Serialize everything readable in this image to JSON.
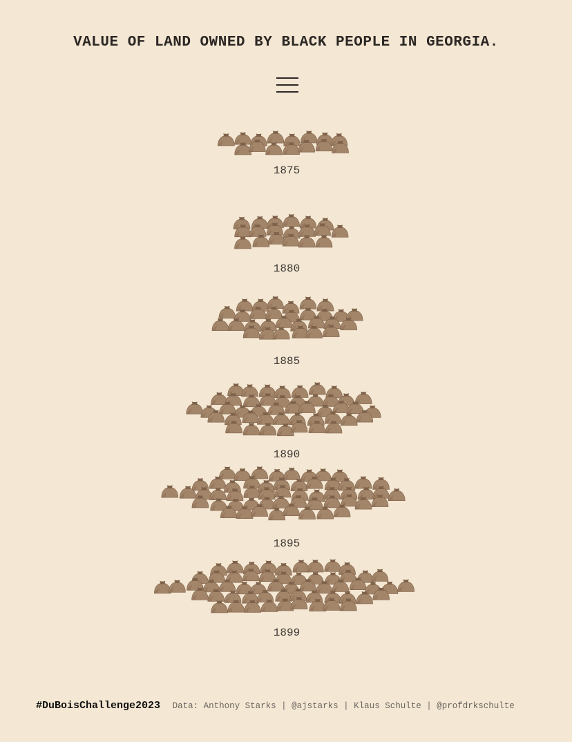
{
  "title": "VALUE OF LAND OWNED BY BLACK PEOPLE IN GEORGIA.",
  "menu_icon": "hamburger-menu-icon",
  "colors": {
    "background": "#f4e7d3",
    "bag": "#a3856a",
    "bag_dark": "#7d6149",
    "text": "#2b2724"
  },
  "chart_data": {
    "type": "pictograph",
    "icon": "money-bag-icon",
    "series": [
      {
        "year": "1875",
        "bags": 15
      },
      {
        "year": "1880",
        "bags": 19
      },
      {
        "year": "1885",
        "bags": 30
      },
      {
        "year": "1890",
        "bags": 46
      },
      {
        "year": "1895",
        "bags": 55
      },
      {
        "year": "1899",
        "bags": 58
      }
    ]
  },
  "footer": {
    "hashtag": "#DuBoisChallenge2023",
    "credits": "Data: Anthony Starks | @ajstarks | Klaus Schulte | @profdrkschulte"
  }
}
